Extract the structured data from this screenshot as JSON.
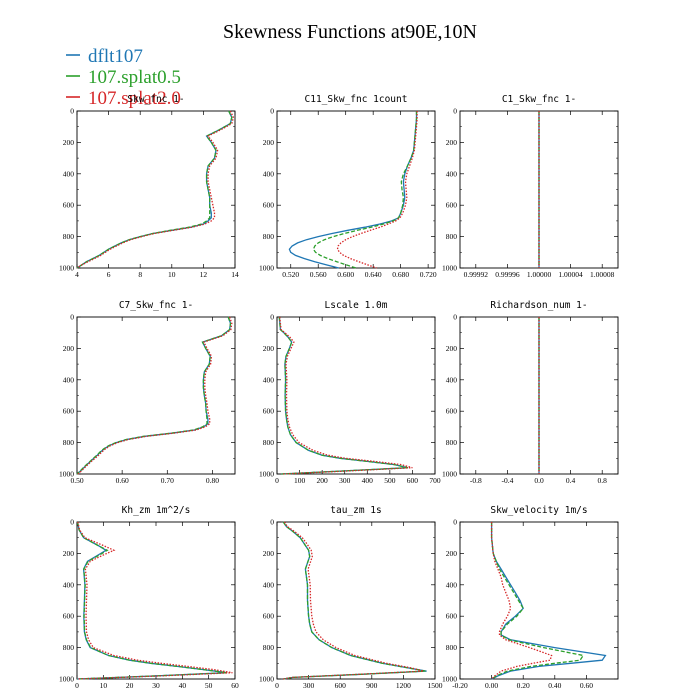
{
  "title": "Skewness Functions at90E,10N",
  "legend": [
    {
      "label": "dflt107",
      "color": "#1f77b4",
      "dash": "solid"
    },
    {
      "label": "107.splat0.5",
      "color": "#2ca02c",
      "dash": "dashed"
    },
    {
      "label": "107.splat2.0",
      "color": "#d62728",
      "dash": "dotted"
    }
  ],
  "chart_data": [
    {
      "type": "line",
      "title": "Skw_fnc  1-",
      "xlim": [
        4,
        14
      ],
      "xticks": [
        "4",
        "6",
        "8",
        "10",
        "12",
        "14"
      ],
      "ylim": [
        0,
        1000
      ],
      "yticks": [
        "0",
        "200",
        "400",
        "600",
        "800",
        "1000"
      ],
      "y": [
        0,
        40,
        80,
        120,
        160,
        200,
        250,
        300,
        350,
        400,
        450,
        500,
        550,
        600,
        650,
        680,
        700,
        720,
        740,
        760,
        780,
        800,
        820,
        840,
        860,
        880,
        900,
        920,
        940,
        960,
        980,
        1000
      ],
      "series": [
        {
          "name": "dflt107",
          "values": [
            13.6,
            13.8,
            13.7,
            13.0,
            12.2,
            12.5,
            12.8,
            12.7,
            12.3,
            12.2,
            12.2,
            12.3,
            12.4,
            12.4,
            12.5,
            12.5,
            12.3,
            12.0,
            11.2,
            10.0,
            8.8,
            8.0,
            7.3,
            6.8,
            6.4,
            6.0,
            5.7,
            5.4,
            5.0,
            4.6,
            4.3,
            4.0
          ]
        },
        {
          "name": "107.splat0.5",
          "values": [
            13.6,
            13.8,
            13.7,
            13.0,
            12.2,
            12.5,
            12.8,
            12.7,
            12.3,
            12.2,
            12.2,
            12.3,
            12.4,
            12.4,
            12.4,
            12.4,
            12.2,
            11.9,
            11.1,
            9.9,
            8.8,
            8.0,
            7.3,
            6.8,
            6.4,
            6.0,
            5.7,
            5.4,
            5.0,
            4.6,
            4.3,
            4.0
          ]
        },
        {
          "name": "107.splat2.0",
          "values": [
            13.7,
            13.9,
            13.8,
            13.1,
            12.3,
            12.6,
            12.9,
            12.8,
            12.4,
            12.3,
            12.3,
            12.4,
            12.5,
            12.6,
            12.7,
            12.7,
            12.5,
            12.1,
            11.3,
            10.1,
            8.9,
            8.1,
            7.4,
            6.9,
            6.5,
            6.1,
            5.8,
            5.5,
            5.1,
            4.7,
            4.3,
            4.0
          ]
        }
      ]
    },
    {
      "type": "line",
      "title": "C11_Skw_fnc  1count",
      "xlim": [
        0.5,
        0.73
      ],
      "xticks": [
        "0.520",
        "0.560",
        "0.600",
        "0.640",
        "0.680",
        "0.720"
      ],
      "ylim": [
        0,
        1000
      ],
      "yticks": [
        "0",
        "200",
        "400",
        "600",
        "800",
        "1000"
      ],
      "y": [
        0,
        50,
        100,
        150,
        200,
        250,
        300,
        350,
        400,
        450,
        500,
        550,
        600,
        650,
        680,
        700,
        720,
        740,
        760,
        780,
        800,
        820,
        840,
        860,
        880,
        900,
        920,
        940,
        960,
        980,
        1000
      ],
      "series": [
        {
          "name": "dflt107",
          "values": [
            0.703,
            0.703,
            0.702,
            0.701,
            0.7,
            0.699,
            0.695,
            0.69,
            0.686,
            0.684,
            0.685,
            0.686,
            0.684,
            0.68,
            0.677,
            0.667,
            0.65,
            0.628,
            0.603,
            0.58,
            0.56,
            0.543,
            0.53,
            0.522,
            0.518,
            0.52,
            0.527,
            0.54,
            0.555,
            0.572,
            0.59
          ]
        },
        {
          "name": "107.splat0.5",
          "values": [
            0.703,
            0.703,
            0.702,
            0.701,
            0.7,
            0.699,
            0.695,
            0.69,
            0.684,
            0.681,
            0.682,
            0.684,
            0.683,
            0.68,
            0.677,
            0.669,
            0.655,
            0.637,
            0.617,
            0.598,
            0.582,
            0.569,
            0.56,
            0.555,
            0.553,
            0.556,
            0.563,
            0.574,
            0.587,
            0.601,
            0.615
          ]
        },
        {
          "name": "107.splat2.0",
          "values": [
            0.704,
            0.704,
            0.703,
            0.702,
            0.701,
            0.7,
            0.697,
            0.693,
            0.689,
            0.687,
            0.688,
            0.689,
            0.687,
            0.683,
            0.679,
            0.673,
            0.662,
            0.65,
            0.636,
            0.622,
            0.61,
            0.6,
            0.593,
            0.589,
            0.588,
            0.591,
            0.597,
            0.607,
            0.619,
            0.632,
            0.645
          ]
        }
      ]
    },
    {
      "type": "line",
      "title": "C1_Skw_fnc  1-",
      "xlim": [
        0.9999,
        1.0001
      ],
      "xticks": [
        "0.99992",
        "0.99996",
        "1.00000",
        "1.00004",
        "1.00008"
      ],
      "ylim": [
        0,
        1000
      ],
      "yticks": [
        "0",
        "200",
        "400",
        "600",
        "800",
        "1000"
      ],
      "y": [
        0,
        1000
      ],
      "series": [
        {
          "name": "dflt107",
          "values": [
            1.0,
            1.0
          ]
        },
        {
          "name": "107.splat0.5",
          "values": [
            1.0,
            1.0
          ]
        },
        {
          "name": "107.splat2.0",
          "values": [
            1.0,
            1.0
          ]
        }
      ]
    },
    {
      "type": "line",
      "title": "C7_Skw_fnc  1-",
      "xlim": [
        0.5,
        0.85
      ],
      "xticks": [
        "0.50",
        "0.60",
        "0.70",
        "0.80"
      ],
      "ylim": [
        0,
        1000
      ],
      "yticks": [
        "0",
        "200",
        "400",
        "600",
        "800",
        "1000"
      ],
      "y": [
        0,
        40,
        80,
        120,
        160,
        200,
        250,
        300,
        350,
        400,
        450,
        500,
        550,
        600,
        650,
        680,
        700,
        720,
        740,
        760,
        780,
        800,
        820,
        840,
        860,
        880,
        900,
        920,
        940,
        960,
        980,
        1000
      ],
      "series": [
        {
          "name": "dflt107",
          "values": [
            0.835,
            0.84,
            0.838,
            0.82,
            0.778,
            0.785,
            0.795,
            0.793,
            0.782,
            0.78,
            0.78,
            0.782,
            0.785,
            0.786,
            0.79,
            0.79,
            0.78,
            0.76,
            0.71,
            0.65,
            0.61,
            0.587,
            0.571,
            0.56,
            0.552,
            0.545,
            0.537,
            0.53,
            0.522,
            0.515,
            0.508,
            0.5
          ]
        },
        {
          "name": "107.splat0.5",
          "values": [
            0.835,
            0.84,
            0.838,
            0.82,
            0.778,
            0.785,
            0.795,
            0.793,
            0.782,
            0.78,
            0.78,
            0.782,
            0.785,
            0.786,
            0.788,
            0.788,
            0.778,
            0.758,
            0.708,
            0.648,
            0.609,
            0.586,
            0.57,
            0.559,
            0.551,
            0.544,
            0.536,
            0.529,
            0.521,
            0.514,
            0.507,
            0.5
          ]
        },
        {
          "name": "107.splat2.0",
          "values": [
            0.838,
            0.843,
            0.841,
            0.823,
            0.781,
            0.788,
            0.798,
            0.796,
            0.785,
            0.783,
            0.783,
            0.785,
            0.788,
            0.79,
            0.794,
            0.794,
            0.784,
            0.764,
            0.714,
            0.654,
            0.614,
            0.59,
            0.574,
            0.563,
            0.555,
            0.548,
            0.54,
            0.532,
            0.524,
            0.517,
            0.51,
            0.502
          ]
        }
      ]
    },
    {
      "type": "line",
      "title": "Lscale  1.0m",
      "xlim": [
        0,
        700
      ],
      "xticks": [
        "0",
        "100",
        "200",
        "300",
        "400",
        "500",
        "600",
        "700"
      ],
      "ylim": [
        0,
        1000
      ],
      "yticks": [
        "0",
        "200",
        "400",
        "600",
        "800",
        "1000"
      ],
      "y": [
        0,
        80,
        100,
        130,
        160,
        200,
        250,
        300,
        400,
        500,
        600,
        650,
        700,
        750,
        800,
        850,
        880,
        900,
        920,
        940,
        960,
        980,
        1000
      ],
      "series": [
        {
          "name": "dflt107",
          "values": [
            10,
            15,
            30,
            50,
            65,
            55,
            40,
            35,
            38,
            36,
            38,
            42,
            48,
            60,
            85,
            140,
            200,
            280,
            400,
            520,
            580,
            300,
            20
          ]
        },
        {
          "name": "107.splat0.5",
          "values": [
            10,
            15,
            30,
            50,
            65,
            55,
            40,
            35,
            38,
            36,
            38,
            42,
            48,
            60,
            85,
            140,
            200,
            280,
            400,
            520,
            580,
            300,
            20
          ]
        },
        {
          "name": "107.splat2.0",
          "values": [
            12,
            18,
            35,
            58,
            75,
            62,
            46,
            40,
            44,
            42,
            44,
            48,
            55,
            70,
            98,
            160,
            225,
            305,
            430,
            550,
            600,
            320,
            25
          ]
        }
      ]
    },
    {
      "type": "line",
      "title": "Richardson_num  1-",
      "xlim": [
        -1,
        1
      ],
      "xticks": [
        "-0.8",
        "-0.4",
        "0.0",
        "0.4",
        "0.8"
      ],
      "ylim": [
        0,
        1000
      ],
      "yticks": [
        "0",
        "200",
        "400",
        "600",
        "800",
        "1000"
      ],
      "y": [
        0,
        1000
      ],
      "series": [
        {
          "name": "dflt107",
          "values": [
            0.0,
            0.0
          ]
        },
        {
          "name": "107.splat0.5",
          "values": [
            0.0,
            0.0
          ]
        },
        {
          "name": "107.splat2.0",
          "values": [
            0.0,
            0.0
          ]
        }
      ]
    },
    {
      "type": "line",
      "title": "Kh_zm  1m^2/s",
      "xlim": [
        0,
        60
      ],
      "xticks": [
        "0",
        "10",
        "20",
        "30",
        "40",
        "50",
        "60"
      ],
      "ylim": [
        0,
        1000
      ],
      "yticks": [
        "0",
        "200",
        "400",
        "600",
        "800",
        "1000"
      ],
      "y": [
        0,
        50,
        100,
        150,
        180,
        210,
        250,
        300,
        400,
        500,
        600,
        700,
        750,
        800,
        850,
        880,
        900,
        920,
        940,
        960,
        980,
        1000
      ],
      "series": [
        {
          "name": "dflt107",
          "values": [
            0.2,
            0.8,
            2.5,
            8,
            11,
            8,
            4,
            2.5,
            3,
            2.8,
            2.6,
            2.8,
            3.5,
            5,
            12,
            20,
            28,
            38,
            48,
            57,
            30,
            0
          ]
        },
        {
          "name": "107.splat0.5",
          "values": [
            0.2,
            0.8,
            2.5,
            8,
            11.5,
            8.5,
            4.2,
            2.6,
            3.1,
            2.9,
            2.7,
            2.9,
            3.6,
            5.2,
            12,
            20,
            28,
            38,
            48,
            57,
            30,
            0
          ]
        },
        {
          "name": "107.splat2.0",
          "values": [
            0.3,
            1.0,
            3.0,
            10,
            14,
            10,
            5,
            3.2,
            3.8,
            3.6,
            3.4,
            3.6,
            4.4,
            6.2,
            14,
            23,
            32,
            42,
            52,
            59,
            32,
            0
          ]
        }
      ]
    },
    {
      "type": "line",
      "title": "tau_zm  1s",
      "xlim": [
        0,
        1500
      ],
      "xticks": [
        "0",
        "300",
        "600",
        "900",
        "1200",
        "1500"
      ],
      "ylim": [
        0,
        1000
      ],
      "yticks": [
        "0",
        "200",
        "400",
        "600",
        "800",
        "1000"
      ],
      "y": [
        0,
        30,
        60,
        100,
        140,
        180,
        220,
        260,
        300,
        400,
        500,
        600,
        650,
        700,
        750,
        800,
        850,
        900,
        930,
        950,
        970,
        990,
        1000
      ],
      "series": [
        {
          "name": "dflt107",
          "values": [
            60,
            90,
            150,
            220,
            260,
            300,
            310,
            290,
            270,
            290,
            290,
            300,
            310,
            330,
            400,
            520,
            700,
            1000,
            1250,
            1420,
            800,
            150,
            60
          ]
        },
        {
          "name": "107.splat0.5",
          "values": [
            60,
            90,
            150,
            220,
            260,
            300,
            310,
            290,
            270,
            290,
            290,
            300,
            310,
            330,
            400,
            520,
            700,
            1000,
            1250,
            1410,
            800,
            150,
            60
          ]
        },
        {
          "name": "107.splat2.0",
          "values": [
            70,
            100,
            165,
            240,
            285,
            325,
            335,
            315,
            295,
            315,
            318,
            330,
            345,
            370,
            440,
            560,
            740,
            1040,
            1280,
            1390,
            780,
            140,
            60
          ]
        }
      ]
    },
    {
      "type": "line",
      "title": "Skw_velocity  1m/s",
      "xlim": [
        -0.2,
        0.8
      ],
      "xticks": [
        "-0.20",
        "0.00",
        "0.20",
        "0.40",
        "0.60"
      ],
      "ylim": [
        0,
        1000
      ],
      "yticks": [
        "0",
        "200",
        "400",
        "600",
        "800",
        "1000"
      ],
      "y": [
        0,
        100,
        200,
        250,
        300,
        350,
        400,
        450,
        500,
        550,
        600,
        650,
        700,
        720,
        750,
        800,
        850,
        880,
        900,
        920,
        950,
        980,
        1000
      ],
      "series": [
        {
          "name": "dflt107",
          "values": [
            0.0,
            0.0,
            0.01,
            0.03,
            0.06,
            0.09,
            0.12,
            0.15,
            0.18,
            0.2,
            0.15,
            0.09,
            0.06,
            0.06,
            0.12,
            0.4,
            0.72,
            0.7,
            0.5,
            0.3,
            0.12,
            0.04,
            0.0
          ]
        },
        {
          "name": "107.splat0.5",
          "values": [
            0.0,
            0.0,
            0.01,
            0.03,
            0.05,
            0.08,
            0.11,
            0.14,
            0.17,
            0.2,
            0.16,
            0.1,
            0.06,
            0.06,
            0.11,
            0.33,
            0.58,
            0.56,
            0.4,
            0.25,
            0.1,
            0.03,
            0.0
          ]
        },
        {
          "name": "107.splat2.0",
          "values": [
            0.0,
            0.0,
            0.01,
            0.02,
            0.04,
            0.06,
            0.07,
            0.09,
            0.11,
            0.12,
            0.1,
            0.07,
            0.05,
            0.05,
            0.09,
            0.24,
            0.38,
            0.37,
            0.26,
            0.16,
            0.06,
            0.02,
            0.0
          ]
        }
      ]
    }
  ]
}
